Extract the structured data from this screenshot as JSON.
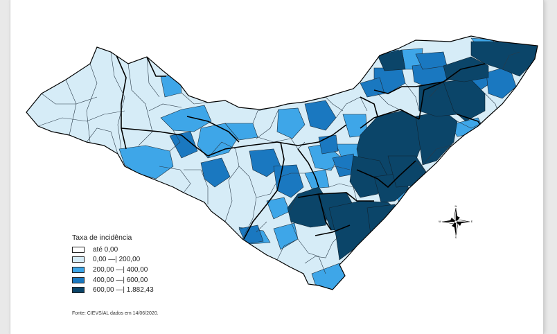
{
  "legend": {
    "title": "Taxa de incidência",
    "classes": [
      {
        "label": "até 0,00",
        "color": "#ffffff"
      },
      {
        "label": "0,00 —| 200,00",
        "color": "#d6ecf7"
      },
      {
        "label": "200,00 —| 400,00",
        "color": "#3ea6e8"
      },
      {
        "label": "400,00 —| 600,00",
        "color": "#1a78c0"
      },
      {
        "label": "600,00 —| 1.882,43",
        "color": "#0b4569"
      }
    ]
  },
  "source_note": "Fonte: CIEVS/AL dados em 14/06/2020.",
  "compass": {
    "north": "N",
    "south": "S",
    "east": "E",
    "west": "W"
  }
}
